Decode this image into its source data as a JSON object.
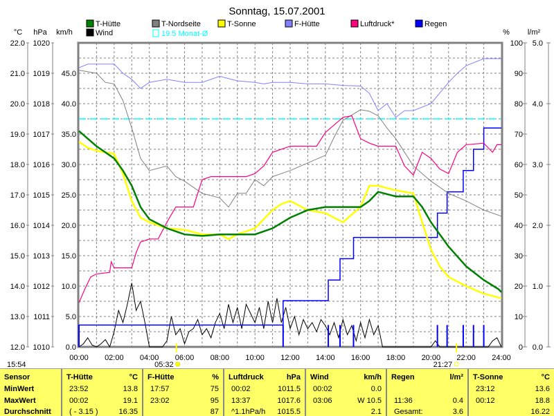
{
  "chart_data": {
    "type": "line",
    "title": "Sonntag, 15.07.2001",
    "axes": {
      "left": [
        {
          "unit": "°C",
          "range": [
            12,
            22
          ],
          "ticks": [
            "12.0",
            "13.0",
            "14.0",
            "15.0",
            "16.0",
            "17.0",
            "18.0",
            "19.0",
            "20.0",
            "21.0",
            "22.0"
          ]
        },
        {
          "unit": "hPa",
          "range": [
            1010,
            1020
          ],
          "ticks": [
            "1010",
            "1011",
            "1012",
            "1013",
            "1014",
            "1015",
            "1016",
            "1017",
            "1018",
            "1019",
            "1020"
          ]
        },
        {
          "unit": "km/h",
          "range": [
            0,
            50
          ],
          "ticks": [
            "0.0",
            "5.0",
            "10.0",
            "15.0",
            "20.0",
            "25.0",
            "30.0",
            "35.0",
            "40.0",
            "45.0"
          ]
        }
      ],
      "right": [
        {
          "unit": "%",
          "range": [
            0,
            100
          ],
          "ticks": [
            "0",
            "10",
            "20",
            "30",
            "40",
            "50",
            "60",
            "70",
            "80",
            "90",
            "100"
          ]
        },
        {
          "unit": "l/m²",
          "range": [
            0,
            5
          ],
          "ticks": [
            "0.0",
            "1.0",
            "2.0",
            "3.0",
            "4.0",
            "5.0"
          ]
        }
      ],
      "x": {
        "range": [
          "00:00",
          "24:00"
        ],
        "ticks": [
          "00:00",
          "02:00",
          "04:00",
          "06:00",
          "08:00",
          "10:00",
          "12:00",
          "14:00",
          "16:00",
          "18:00",
          "20:00",
          "22:00",
          "24:00"
        ]
      }
    },
    "grid": true,
    "legend_position": "top",
    "legend": [
      {
        "name": "T-Hütte",
        "color": "#008000"
      },
      {
        "name": "T-Nordseite",
        "color": "#808080"
      },
      {
        "name": "T-Sonne",
        "color": "#ffff00"
      },
      {
        "name": "F-Hütte",
        "color": "#8080ff"
      },
      {
        "name": "Luftdruck*",
        "color": "#ff0080"
      },
      {
        "name": "Regen",
        "color": "#0000ff"
      },
      {
        "name": "Wind",
        "color": "#000000"
      }
    ],
    "monthly_avg": {
      "label": "19.5 Monat-Ø",
      "value": 19.5,
      "color": "#00ffff"
    },
    "series": [
      {
        "name": "T-Hütte",
        "axis": "°C",
        "color": "#008000",
        "points": [
          [
            "00:00",
            19.1
          ],
          [
            "01:00",
            18.6
          ],
          [
            "02:00",
            18.2
          ],
          [
            "02:30",
            17.8
          ],
          [
            "03:00",
            17.3
          ],
          [
            "03:30",
            16.6
          ],
          [
            "04:00",
            16.2
          ],
          [
            "05:00",
            15.9
          ],
          [
            "06:00",
            15.7
          ],
          [
            "07:00",
            15.65
          ],
          [
            "08:00",
            15.7
          ],
          [
            "09:00",
            15.7
          ],
          [
            "10:00",
            15.7
          ],
          [
            "11:00",
            15.9
          ],
          [
            "12:00",
            16.25
          ],
          [
            "13:00",
            16.5
          ],
          [
            "14:00",
            16.6
          ],
          [
            "15:00",
            16.6
          ],
          [
            "16:00",
            16.6
          ],
          [
            "16:30",
            16.8
          ],
          [
            "17:00",
            17.1
          ],
          [
            "18:00",
            16.95
          ],
          [
            "19:00",
            16.95
          ],
          [
            "19:30",
            16.6
          ],
          [
            "20:00",
            16.1
          ],
          [
            "21:00",
            15.3
          ],
          [
            "22:00",
            14.65
          ],
          [
            "23:00",
            14.2
          ],
          [
            "23:50",
            13.9
          ],
          [
            "24:00",
            13.8
          ]
        ]
      },
      {
        "name": "T-Sonne",
        "axis": "°C",
        "color": "#ffff00",
        "points": [
          [
            "00:00",
            18.75
          ],
          [
            "00:30",
            18.55
          ],
          [
            "01:00",
            18.45
          ],
          [
            "01:30",
            18.4
          ],
          [
            "02:00",
            18.35
          ],
          [
            "02:30",
            17.7
          ],
          [
            "03:00",
            16.8
          ],
          [
            "03:30",
            16.25
          ],
          [
            "04:00",
            16.1
          ],
          [
            "05:00",
            15.9
          ],
          [
            "06:00",
            15.85
          ],
          [
            "07:00",
            15.7
          ],
          [
            "08:00",
            15.7
          ],
          [
            "08:30",
            15.55
          ],
          [
            "09:00",
            15.7
          ],
          [
            "10:00",
            15.9
          ],
          [
            "11:00",
            16.5
          ],
          [
            "11:30",
            16.7
          ],
          [
            "12:00",
            16.8
          ],
          [
            "13:00",
            16.5
          ],
          [
            "14:00",
            16.4
          ],
          [
            "15:00",
            16.1
          ],
          [
            "16:00",
            16.6
          ],
          [
            "16:30",
            17.3
          ],
          [
            "17:00",
            17.3
          ],
          [
            "18:00",
            17.15
          ],
          [
            "19:00",
            17.05
          ],
          [
            "19:30",
            16.1
          ],
          [
            "20:00",
            15.2
          ],
          [
            "20:30",
            14.65
          ],
          [
            "21:00",
            14.3
          ],
          [
            "22:00",
            14.0
          ],
          [
            "23:00",
            13.75
          ],
          [
            "24:00",
            13.6
          ]
        ]
      },
      {
        "name": "T-Nordseite",
        "axis": "°C",
        "color": "#808080",
        "points": [
          [
            "00:00",
            21.1
          ],
          [
            "01:00",
            21.0
          ],
          [
            "01:30",
            20.7
          ],
          [
            "02:00",
            20.65
          ],
          [
            "02:30",
            20.1
          ],
          [
            "03:00",
            19.2
          ],
          [
            "03:30",
            18.2
          ],
          [
            "04:00",
            17.8
          ],
          [
            "05:00",
            17.95
          ],
          [
            "05:30",
            17.6
          ],
          [
            "06:00",
            17.45
          ],
          [
            "07:00",
            17.05
          ],
          [
            "08:00",
            16.9
          ],
          [
            "08:30",
            16.6
          ],
          [
            "09:00",
            17.05
          ],
          [
            "09:30",
            17.05
          ],
          [
            "10:00",
            17.5
          ],
          [
            "10:30",
            17.3
          ],
          [
            "11:00",
            17.6
          ],
          [
            "12:00",
            17.8
          ],
          [
            "13:00",
            18.05
          ],
          [
            "14:00",
            18.3
          ],
          [
            "14:30",
            18.9
          ],
          [
            "15:00",
            19.45
          ],
          [
            "16:00",
            19.8
          ],
          [
            "16:30",
            19.75
          ],
          [
            "17:00",
            19.6
          ],
          [
            "17:30",
            19.2
          ],
          [
            "18:00",
            18.85
          ],
          [
            "19:00",
            17.95
          ],
          [
            "20:00",
            17.45
          ],
          [
            "21:00",
            17.05
          ],
          [
            "22:00",
            16.8
          ],
          [
            "23:00",
            16.5
          ],
          [
            "24:00",
            16.3
          ]
        ]
      },
      {
        "name": "F-Hütte",
        "axis": "%",
        "color": "#8080ff",
        "points": [
          [
            "00:00",
            91.8
          ],
          [
            "00:30",
            93
          ],
          [
            "02:00",
            93
          ],
          [
            "02:30",
            90
          ],
          [
            "03:00",
            88
          ],
          [
            "03:30",
            85
          ],
          [
            "04:00",
            87
          ],
          [
            "05:00",
            88
          ],
          [
            "06:00",
            87
          ],
          [
            "07:00",
            87
          ],
          [
            "08:00",
            89
          ],
          [
            "09:00",
            87.5
          ],
          [
            "10:00",
            87
          ],
          [
            "10:30",
            86.5
          ],
          [
            "11:00",
            87
          ],
          [
            "12:00",
            87
          ],
          [
            "13:00",
            86.5
          ],
          [
            "14:00",
            86.5
          ],
          [
            "15:00",
            86
          ],
          [
            "16:00",
            85.8
          ],
          [
            "16:30",
            83.4
          ],
          [
            "17:00",
            77.7
          ],
          [
            "17:30",
            80
          ],
          [
            "18:00",
            75.5
          ],
          [
            "18:30",
            77.7
          ],
          [
            "19:00",
            77.7
          ],
          [
            "20:00",
            80
          ],
          [
            "21:00",
            87
          ],
          [
            "21:30",
            90
          ],
          [
            "22:00",
            92.5
          ],
          [
            "23:00",
            94.8
          ],
          [
            "24:00",
            94.8
          ]
        ]
      },
      {
        "name": "Luftdruck*",
        "axis": "hPa",
        "color": "#ff0080",
        "points": [
          [
            "00:00",
            1011.45
          ],
          [
            "00:20",
            1011.9
          ],
          [
            "00:40",
            1012.3
          ],
          [
            "01:00",
            1012.4
          ],
          [
            "01:45",
            1012.45
          ],
          [
            "01:50",
            1012.8
          ],
          [
            "02:00",
            1012.6
          ],
          [
            "03:00",
            1012.6
          ],
          [
            "03:15",
            1013.1
          ],
          [
            "03:30",
            1013.45
          ],
          [
            "04:00",
            1013.55
          ],
          [
            "04:30",
            1013.55
          ],
          [
            "05:00",
            1014.1
          ],
          [
            "05:30",
            1014.6
          ],
          [
            "06:30",
            1014.6
          ],
          [
            "07:00",
            1015.5
          ],
          [
            "07:30",
            1015.6
          ],
          [
            "09:30",
            1015.6
          ],
          [
            "10:00",
            1015.7
          ],
          [
            "10:30",
            1015.95
          ],
          [
            "11:00",
            1016.4
          ],
          [
            "12:00",
            1016.6
          ],
          [
            "13:30",
            1016.6
          ],
          [
            "14:00",
            1017.05
          ],
          [
            "14:30",
            1017.3
          ],
          [
            "15:00",
            1017.55
          ],
          [
            "15:30",
            1017.6
          ],
          [
            "16:00",
            1016.85
          ],
          [
            "16:30",
            1016.7
          ],
          [
            "17:00",
            1016.6
          ],
          [
            "18:00",
            1016.6
          ],
          [
            "18:30",
            1015.95
          ],
          [
            "19:00",
            1015.65
          ],
          [
            "19:30",
            1016.4
          ],
          [
            "20:00",
            1016.2
          ],
          [
            "20:30",
            1015.85
          ],
          [
            "21:00",
            1015.7
          ],
          [
            "21:30",
            1016.4
          ],
          [
            "22:00",
            1016.65
          ],
          [
            "23:00",
            1016.7
          ],
          [
            "23:30",
            1016.4
          ],
          [
            "23:45",
            1016.65
          ],
          [
            "24:00",
            1016.65
          ]
        ]
      },
      {
        "name": "Regen",
        "axis": "l/m²",
        "color": "#0000ff",
        "cumulative": [
          [
            "00:00",
            0.36
          ],
          [
            "11:36",
            0.76
          ],
          [
            "14:10",
            1.1
          ],
          [
            "14:50",
            1.45
          ],
          [
            "15:36",
            1.8
          ],
          [
            "20:22",
            2.2
          ],
          [
            "20:55",
            2.55
          ],
          [
            "21:50",
            2.9
          ],
          [
            "22:25",
            3.25
          ],
          [
            "23:00",
            3.6
          ]
        ],
        "interval": 0.36
      },
      {
        "name": "Wind",
        "axis": "km/h",
        "color": "#000000",
        "start": "00:00",
        "step_minutes": 15,
        "values": [
          0,
          0.5,
          1.5,
          0.3,
          0,
          0.5,
          1.2,
          0,
          2.5,
          6,
          4,
          7,
          10.5,
          6,
          7.5,
          4,
          0,
          0,
          0,
          0,
          1,
          5,
          2,
          3,
          0.5,
          2.5,
          3,
          4.5,
          2,
          3,
          1.5,
          4,
          5.5,
          3,
          7,
          4,
          6.5,
          3,
          7,
          5.5,
          4,
          6.5,
          3,
          7.5,
          4,
          8,
          4,
          6.5,
          3,
          5,
          2,
          4.5,
          3,
          4,
          2.5,
          4.5,
          3.5,
          2,
          4,
          1.5,
          4.5,
          2,
          3.5,
          1,
          4,
          1.5,
          4.5,
          2,
          3.5,
          0,
          0,
          0,
          0,
          0,
          0,
          0,
          0,
          0,
          0,
          0,
          0,
          1,
          0,
          0,
          0,
          0,
          0,
          0,
          0,
          0,
          0,
          0,
          0,
          0,
          1,
          1.5,
          0
        ]
      }
    ],
    "annotations": {
      "current_time": "15:54",
      "sunrise": "05:32",
      "sunset": "21:27"
    }
  },
  "table": {
    "columns": [
      {
        "header": "Sensor",
        "unit": "",
        "rows": [
          [
            "MinWert",
            ""
          ],
          [
            "MaxWert",
            ""
          ],
          [
            "Durchschnitt",
            ""
          ]
        ]
      },
      {
        "header": "T-Hütte",
        "unit": "°C",
        "rows": [
          [
            "23:52",
            "13.8"
          ],
          [
            "00:02",
            "19.1"
          ],
          [
            "( - 3.15 )",
            "16.35"
          ]
        ]
      },
      {
        "header": "F-Hütte",
        "unit": "%",
        "rows": [
          [
            "17:57",
            "75"
          ],
          [
            "23:02",
            "95"
          ],
          [
            "",
            "87"
          ]
        ]
      },
      {
        "header": "Luftdruck",
        "unit": "hPa",
        "rows": [
          [
            "00:02",
            "1011.5"
          ],
          [
            "13:37",
            "1017.6"
          ],
          [
            "^1.1hPa/h",
            "1015.5"
          ]
        ]
      },
      {
        "header": "Wind",
        "unit": "km/h",
        "rows": [
          [
            "00:02",
            "0.0"
          ],
          [
            "03:06",
            "W 10.5"
          ],
          [
            "",
            "2.1"
          ]
        ]
      },
      {
        "header": "Regen",
        "unit": "l/m²",
        "rows": [
          [
            "",
            ""
          ],
          [
            "11:36",
            "0.4"
          ],
          [
            "Gesamt:",
            "3.6"
          ]
        ]
      },
      {
        "header": "T-Sonne",
        "unit": "°C",
        "rows": [
          [
            "23:12",
            "13.6"
          ],
          [
            "00:12",
            "18.8"
          ],
          [
            "",
            "16.22"
          ]
        ]
      }
    ]
  }
}
